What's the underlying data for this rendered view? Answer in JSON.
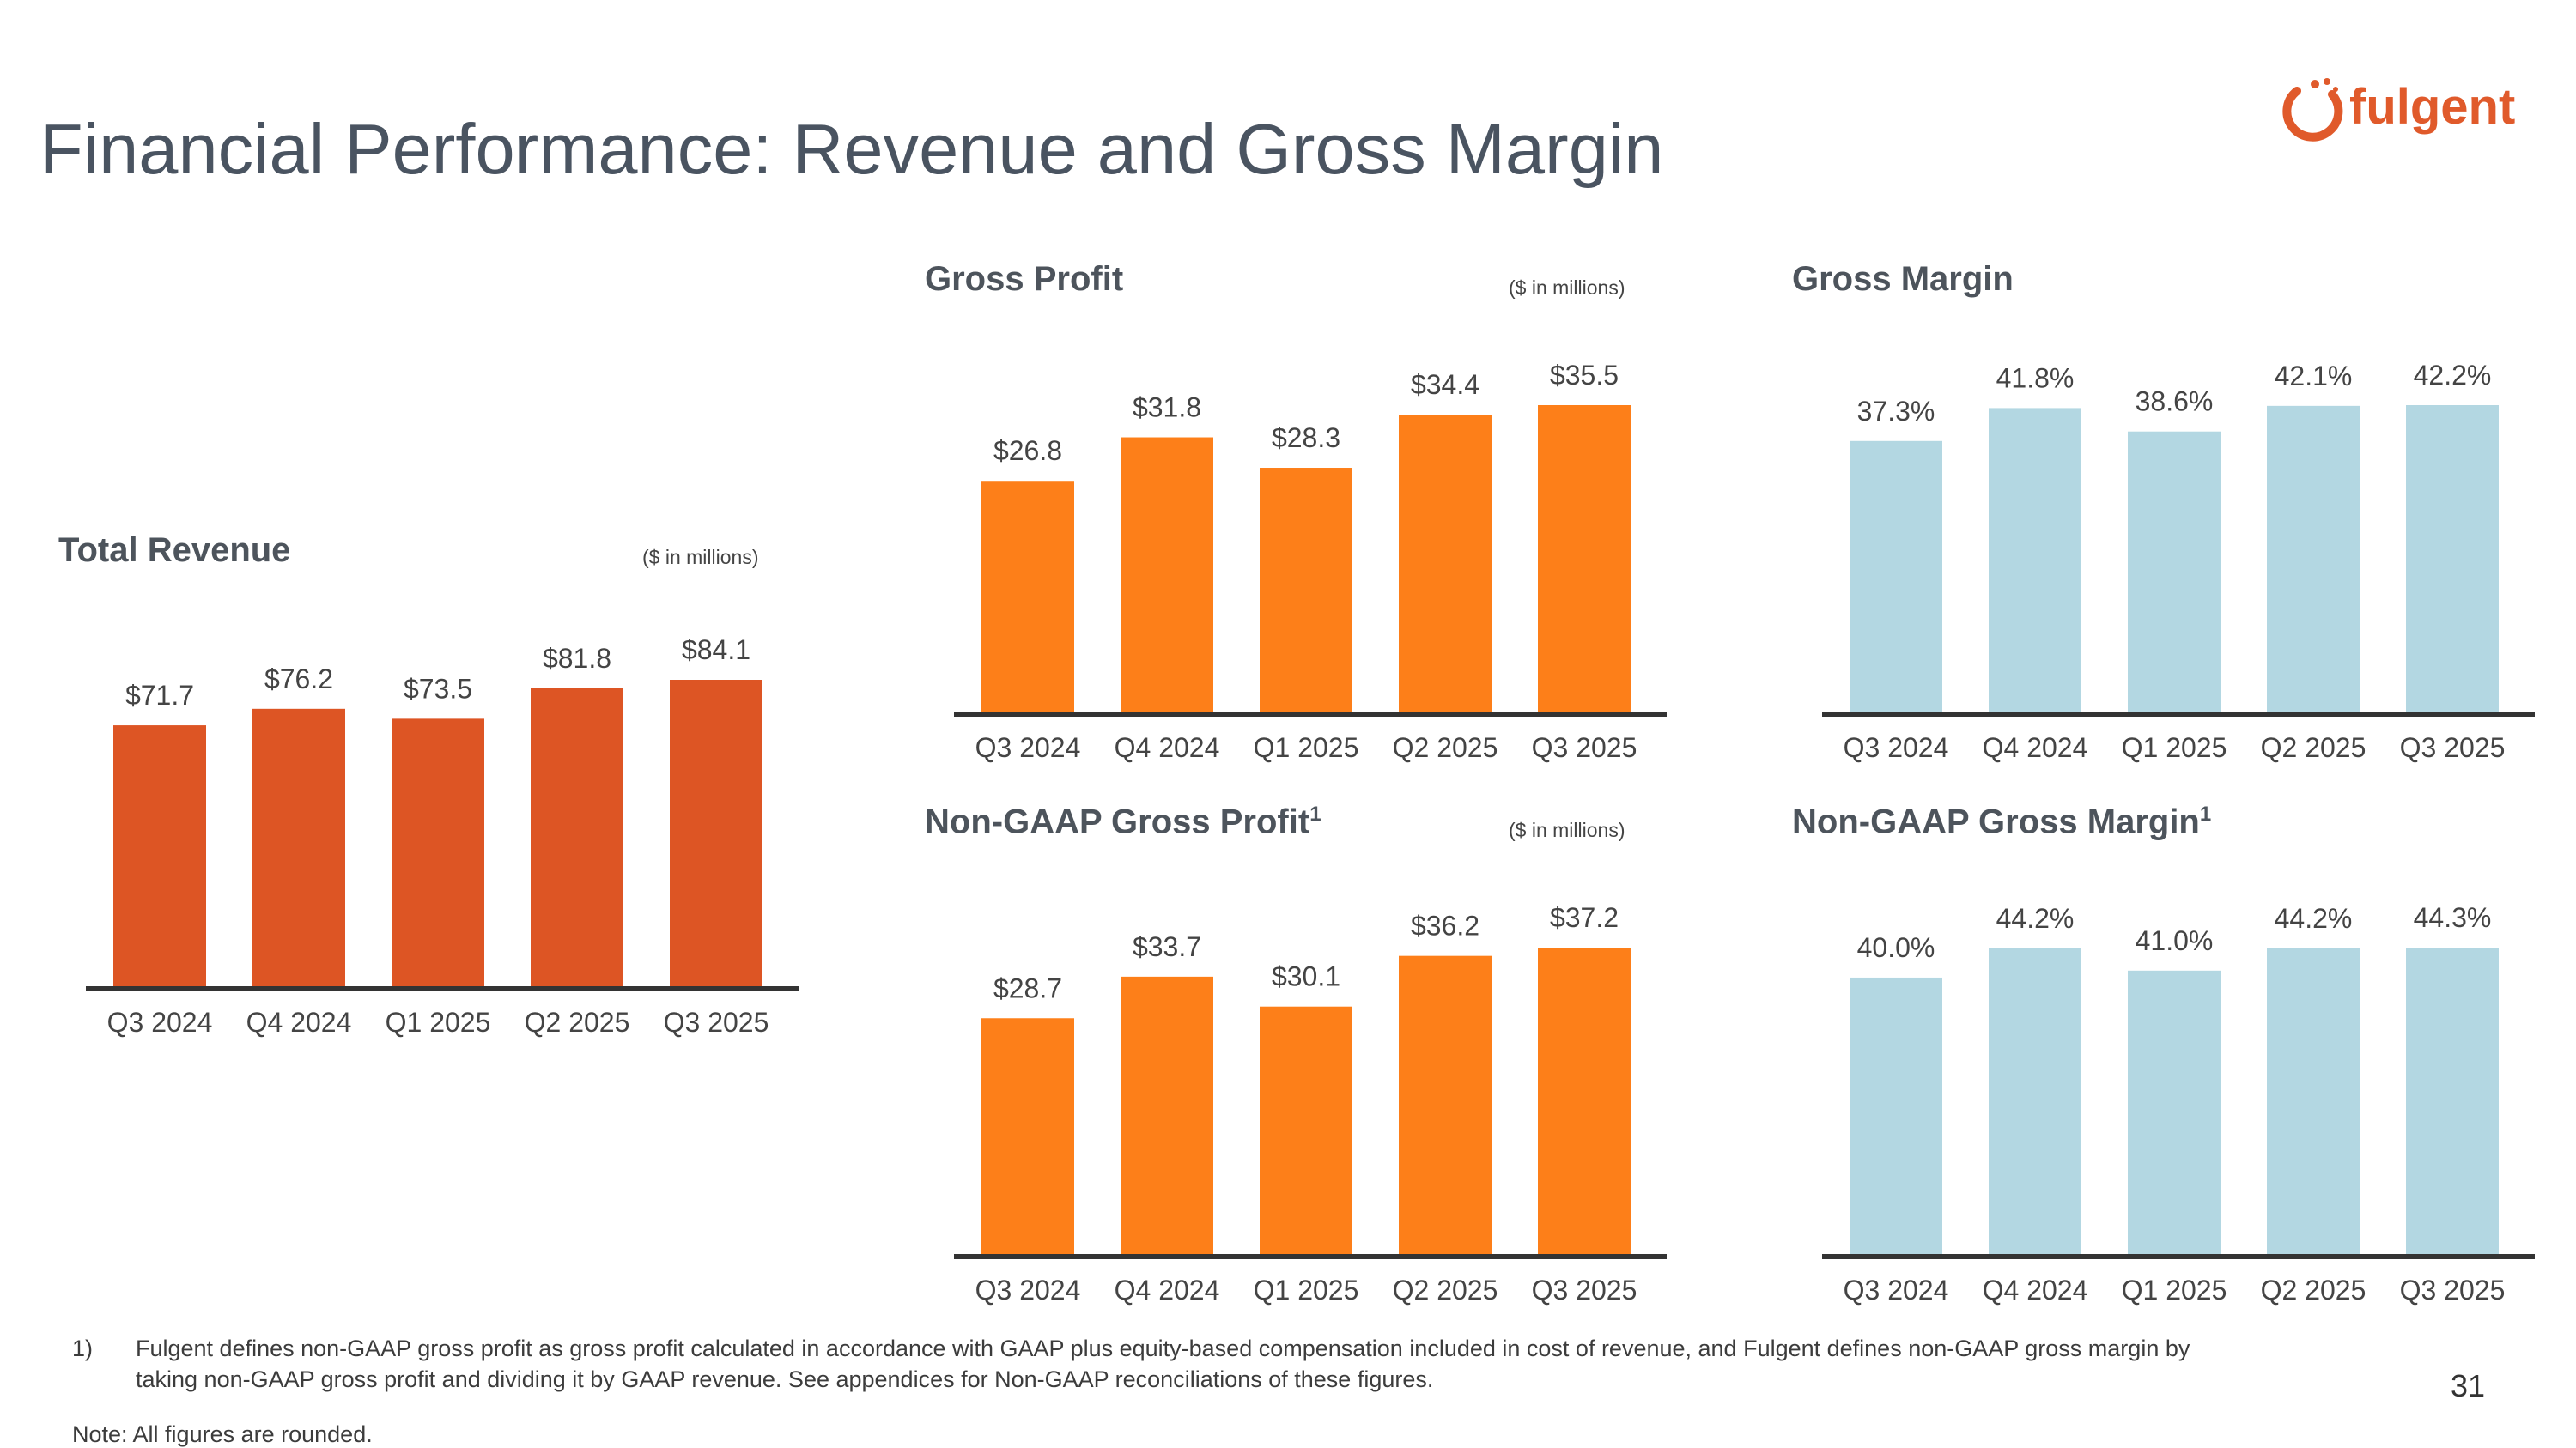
{
  "title": "Financial Performance: Revenue and Gross Margin",
  "logo": {
    "text": "fulgent",
    "color": "#e05a2b"
  },
  "page_number": "31",
  "footnote": {
    "marker": "1)",
    "text": "Fulgent defines non-GAAP gross profit as gross profit calculated in accordance with GAAP plus equity-based compensation included in cost of revenue, and Fulgent defines non-GAAP gross margin by taking non-GAAP gross profit and dividing it by GAAP revenue.  See appendices for Non-GAAP reconciliations of these figures."
  },
  "note": "Note: All figures are rounded.",
  "colors": {
    "revenue": "#dd5524",
    "profit": "#fd7f19",
    "margin": "#b3d7e2",
    "axis": "#333333",
    "label": "#444444"
  },
  "chart_data": [
    {
      "id": "total-revenue",
      "type": "bar",
      "title": "Total Revenue",
      "unit_note": "($ in millions)",
      "categories": [
        "Q3 2024",
        "Q4 2024",
        "Q1 2025",
        "Q2 2025",
        "Q3 2025"
      ],
      "values": [
        71.7,
        76.2,
        73.5,
        81.8,
        84.1
      ],
      "data_labels": [
        "$71.7",
        "$76.2",
        "$73.5",
        "$81.8",
        "$84.1"
      ],
      "ylim": [
        0,
        84.1
      ]
    },
    {
      "id": "gross-profit",
      "type": "bar",
      "title": "Gross Profit",
      "unit_note": "($ in millions)",
      "categories": [
        "Q3 2024",
        "Q4 2024",
        "Q1 2025",
        "Q2 2025",
        "Q3 2025"
      ],
      "values": [
        26.8,
        31.8,
        28.3,
        34.4,
        35.5
      ],
      "data_labels": [
        "$26.8",
        "$31.8",
        "$28.3",
        "$34.4",
        "$35.5"
      ],
      "ylim": [
        0,
        35.5
      ]
    },
    {
      "id": "gross-margin",
      "type": "bar",
      "title": "Gross Margin",
      "categories": [
        "Q3 2024",
        "Q4 2024",
        "Q1 2025",
        "Q2 2025",
        "Q3 2025"
      ],
      "values": [
        37.3,
        41.8,
        38.6,
        42.1,
        42.2
      ],
      "data_labels": [
        "37.3%",
        "41.8%",
        "38.6%",
        "42.1%",
        "42.2%"
      ],
      "ylim": [
        0,
        42.2
      ]
    },
    {
      "id": "non-gaap-gross-profit",
      "type": "bar",
      "title": "Non-GAAP Gross Profit",
      "title_sup": "1",
      "unit_note": "($ in millions)",
      "categories": [
        "Q3 2024",
        "Q4 2024",
        "Q1 2025",
        "Q2 2025",
        "Q3 2025"
      ],
      "values": [
        28.7,
        33.7,
        30.1,
        36.2,
        37.2
      ],
      "data_labels": [
        "$28.7",
        "$33.7",
        "$30.1",
        "$36.2",
        "$37.2"
      ],
      "ylim": [
        0,
        37.2
      ]
    },
    {
      "id": "non-gaap-gross-margin",
      "type": "bar",
      "title": "Non-GAAP Gross Margin",
      "title_sup": "1",
      "categories": [
        "Q3 2024",
        "Q4 2024",
        "Q1 2025",
        "Q2 2025",
        "Q3 2025"
      ],
      "values": [
        40.0,
        44.2,
        41.0,
        44.2,
        44.3
      ],
      "data_labels": [
        "40.0%",
        "44.2%",
        "41.0%",
        "44.2%",
        "44.3%"
      ],
      "ylim": [
        0,
        44.3
      ]
    }
  ]
}
